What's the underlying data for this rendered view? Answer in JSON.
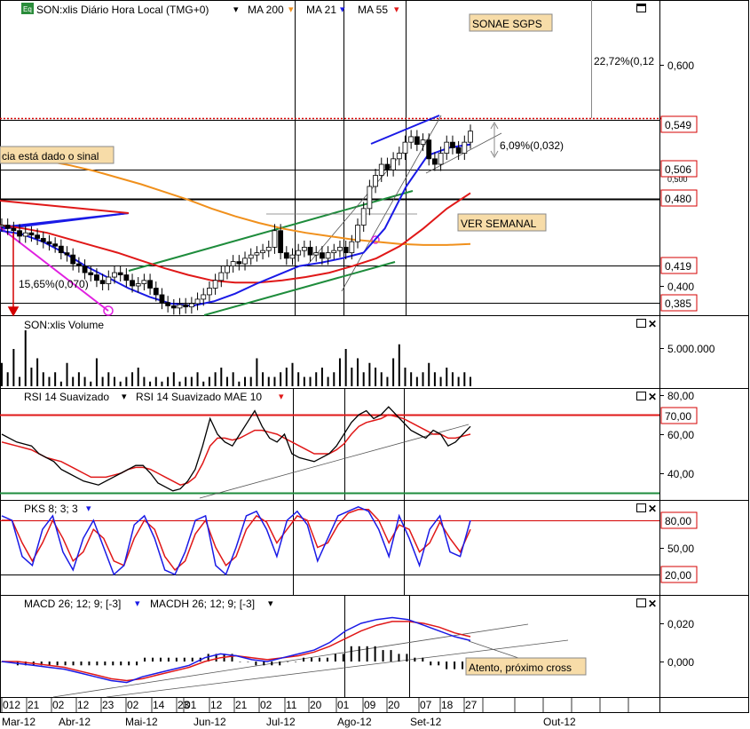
{
  "colors": {
    "ma200": "#f0901c",
    "ma21": "#1a1ae6",
    "ma55": "#e01818",
    "green": "#1e8c3c",
    "magenta": "#e020e0",
    "label_bg": "#f7dca8",
    "price_box_red": "#d40000",
    "resistance_dotted": "#d40000",
    "rsi_line": "#000000",
    "rsi_mae": "#e01818",
    "rsi_high": "#e01818",
    "rsi_low": "#1e8c3c",
    "pks_k": "#1a1ae6",
    "pks_d": "#e01818",
    "macd": "#1a1ae6",
    "macd_signal": "#e01818",
    "macdh": "#000000"
  },
  "main_panel": {
    "header_icon": "chart-icon",
    "header_icon_text": "Eq",
    "title": "SON:xlis Diário Hora Local (TMG+0)",
    "ma200_label": "MA 200",
    "ma21_label": "MA 21",
    "ma55_label": "MA 55",
    "company_label": "SONAE SGPS",
    "signal_note": "cia está dado o sinal",
    "weekly_note": "VER SEMANAL",
    "drop_note": "15,65%(0,070)",
    "target_note": "22,72%(0,12",
    "flag_note": "6,09%(0,032)",
    "price_boxes": [
      "0,549",
      "0,506",
      "0,480",
      "0,419",
      "0,385"
    ],
    "axis_labels": [
      "0,600",
      "0,400"
    ]
  },
  "volume_panel": {
    "title": "SON:xlis Volume",
    "axis_label": "5.000.000"
  },
  "rsi_panel": {
    "label1": "RSI 14 Suavizado",
    "label2": "RSI 14 Suavizado MAE 10",
    "axis_labels": [
      "80,00",
      "60,00",
      "40,00"
    ],
    "boxes": [
      "70,00",
      "30,00"
    ]
  },
  "pks_panel": {
    "label": "PKS 8; 3; 3",
    "axis_label": "50,00",
    "boxes": [
      "80,00",
      "20,00"
    ]
  },
  "macd_panel": {
    "label1": "MACD 26; 12; 9; [-3]",
    "label2": "MACDH 26; 12; 9; [-3]",
    "note": "Atento, próximo cross",
    "axis_labels": [
      "0,020",
      "0,000"
    ]
  },
  "x_axis": {
    "days": [
      "012",
      "21",
      "02",
      "12",
      "23",
      "02",
      "14",
      "23",
      "01",
      "12",
      "21",
      "02",
      "11",
      "20",
      "01",
      "09",
      "20",
      "07",
      "18",
      "27"
    ],
    "months": [
      "Mar-12",
      "Abr-12",
      "Mai-12",
      "Jun-12",
      "Jul-12",
      "Ago-12",
      "Set-12",
      "Out-12"
    ]
  },
  "chart_data": {
    "type": "candlestick",
    "title": "SON:xlis Diário Hora Local (TMG+0)",
    "series_names": [
      "MA 200",
      "MA 21",
      "MA 55",
      "SON:xlis Volume",
      "RSI 14 Suavizado",
      "RSI 14 Suavizado MAE 10",
      "PKS 8; 3; 3",
      "MACD 26; 12; 9; [-3]",
      "MACDH 26; 12; 9; [-3]"
    ],
    "price_levels": [
      0.549,
      0.506,
      0.48,
      0.419,
      0.385
    ],
    "rsi_levels": [
      70,
      30
    ],
    "pks_levels": [
      80,
      20
    ],
    "close_path": [
      0.455,
      0.452,
      0.45,
      0.445,
      0.448,
      0.446,
      0.443,
      0.44,
      0.438,
      0.436,
      0.43,
      0.428,
      0.42,
      0.418,
      0.412,
      0.41,
      0.405,
      0.402,
      0.408,
      0.412,
      0.41,
      0.405,
      0.4,
      0.402,
      0.405,
      0.398,
      0.392,
      0.385,
      0.382,
      0.38,
      0.383,
      0.381,
      0.384,
      0.388,
      0.392,
      0.398,
      0.405,
      0.412,
      0.418,
      0.422,
      0.42,
      0.425,
      0.428,
      0.43,
      0.432,
      0.435,
      0.45,
      0.43,
      0.425,
      0.428,
      0.432,
      0.435,
      0.428,
      0.43,
      0.425,
      0.43,
      0.432,
      0.435,
      0.43,
      0.44,
      0.455,
      0.47,
      0.49,
      0.5,
      0.51,
      0.505,
      0.515,
      0.52,
      0.53,
      0.535,
      0.528,
      0.532,
      0.515,
      0.51,
      0.52,
      0.53,
      0.525,
      0.52,
      0.53,
      0.54
    ],
    "ma200": [
      0.52,
      0.517,
      0.513,
      0.509,
      0.504,
      0.498,
      0.492,
      0.485,
      0.478,
      0.47,
      0.463,
      0.457,
      0.452,
      0.448,
      0.445,
      0.442,
      0.44,
      0.438,
      0.437,
      0.437,
      0.438
    ],
    "ma21": [
      0.45,
      0.447,
      0.44,
      0.43,
      0.418,
      0.408,
      0.398,
      0.39,
      0.384,
      0.382,
      0.386,
      0.393,
      0.402,
      0.41,
      0.418,
      0.421,
      0.425,
      0.43,
      0.452,
      0.49,
      0.518,
      0.525,
      0.528
    ],
    "ma55": [
      0.455,
      0.452,
      0.448,
      0.442,
      0.436,
      0.43,
      0.423,
      0.416,
      0.41,
      0.405,
      0.403,
      0.403,
      0.405,
      0.408,
      0.412,
      0.418,
      0.425,
      0.436,
      0.452,
      0.47,
      0.484
    ],
    "volume": [
      5,
      3,
      8,
      2,
      12,
      4,
      6,
      3,
      2,
      3,
      1,
      5,
      2,
      3,
      2,
      1,
      6,
      2,
      3,
      2,
      1,
      2,
      3,
      4,
      2,
      1,
      2,
      1,
      2,
      3,
      1,
      2,
      2,
      3,
      1,
      2,
      3,
      4,
      2,
      3,
      1,
      2,
      2,
      6,
      3,
      2,
      2,
      3,
      4,
      5,
      3,
      2,
      2,
      3,
      4,
      2,
      3,
      6,
      8,
      4,
      6,
      3,
      5,
      4,
      3,
      2,
      6,
      9,
      4,
      3,
      2,
      3,
      5,
      3,
      2,
      4,
      3,
      2,
      3,
      2
    ],
    "rsi": [
      60,
      58,
      56,
      55,
      54,
      50,
      48,
      46,
      42,
      40,
      38,
      36,
      35,
      34,
      36,
      38,
      40,
      42,
      44,
      44,
      40,
      35,
      33,
      31,
      32,
      36,
      42,
      54,
      68,
      60,
      56,
      54,
      60,
      66,
      72,
      64,
      58,
      56,
      60,
      50,
      48,
      47,
      46,
      48,
      50,
      54,
      60,
      66,
      70,
      72,
      68,
      70,
      74,
      70,
      66,
      62,
      60,
      58,
      62,
      60,
      54,
      56,
      60,
      64
    ],
    "rsi_mae": [
      56,
      55,
      54,
      53,
      52,
      50,
      48,
      47,
      46,
      44,
      42,
      40,
      38,
      38,
      38,
      39,
      40,
      42,
      43,
      43,
      42,
      40,
      38,
      36,
      34,
      35,
      38,
      45,
      54,
      58,
      58,
      57,
      58,
      60,
      62,
      62,
      61,
      60,
      58,
      56,
      54,
      52,
      50,
      50,
      50,
      52,
      55,
      60,
      64,
      66,
      67,
      68,
      70,
      69,
      68,
      66,
      64,
      62,
      60,
      60,
      58,
      58,
      59,
      60
    ],
    "pks_k": [
      85,
      80,
      40,
      30,
      70,
      85,
      45,
      25,
      60,
      80,
      50,
      20,
      30,
      75,
      85,
      60,
      25,
      20,
      45,
      80,
      85,
      30,
      20,
      50,
      85,
      90,
      70,
      40,
      80,
      90,
      75,
      35,
      60,
      85,
      90,
      95,
      90,
      70,
      40,
      85,
      60,
      30,
      70,
      85,
      45,
      40,
      80
    ],
    "pks_d": [
      80,
      80,
      55,
      35,
      55,
      80,
      60,
      35,
      45,
      70,
      60,
      35,
      30,
      60,
      80,
      70,
      40,
      25,
      35,
      65,
      80,
      50,
      30,
      40,
      70,
      85,
      78,
      55,
      70,
      85,
      80,
      50,
      55,
      75,
      88,
      92,
      92,
      80,
      55,
      75,
      70,
      45,
      55,
      78,
      60,
      45,
      70
    ],
    "macd": [
      0.0,
      -0.001,
      -0.002,
      -0.003,
      -0.004,
      -0.006,
      -0.008,
      -0.01,
      -0.011,
      -0.008,
      -0.006,
      -0.004,
      -0.002,
      0.002,
      0.004,
      0.003,
      0.001,
      0.0,
      0.002,
      0.004,
      0.006,
      0.01,
      0.016,
      0.02,
      0.022,
      0.023,
      0.022,
      0.019,
      0.016,
      0.013,
      0.011
    ],
    "macd_signal": [
      0.0,
      0.0,
      -0.001,
      -0.002,
      -0.003,
      -0.005,
      -0.007,
      -0.009,
      -0.01,
      -0.009,
      -0.007,
      -0.005,
      -0.003,
      0.0,
      0.002,
      0.003,
      0.002,
      0.001,
      0.002,
      0.003,
      0.005,
      0.008,
      0.012,
      0.016,
      0.019,
      0.021,
      0.021,
      0.02,
      0.018,
      0.015,
      0.013
    ]
  }
}
